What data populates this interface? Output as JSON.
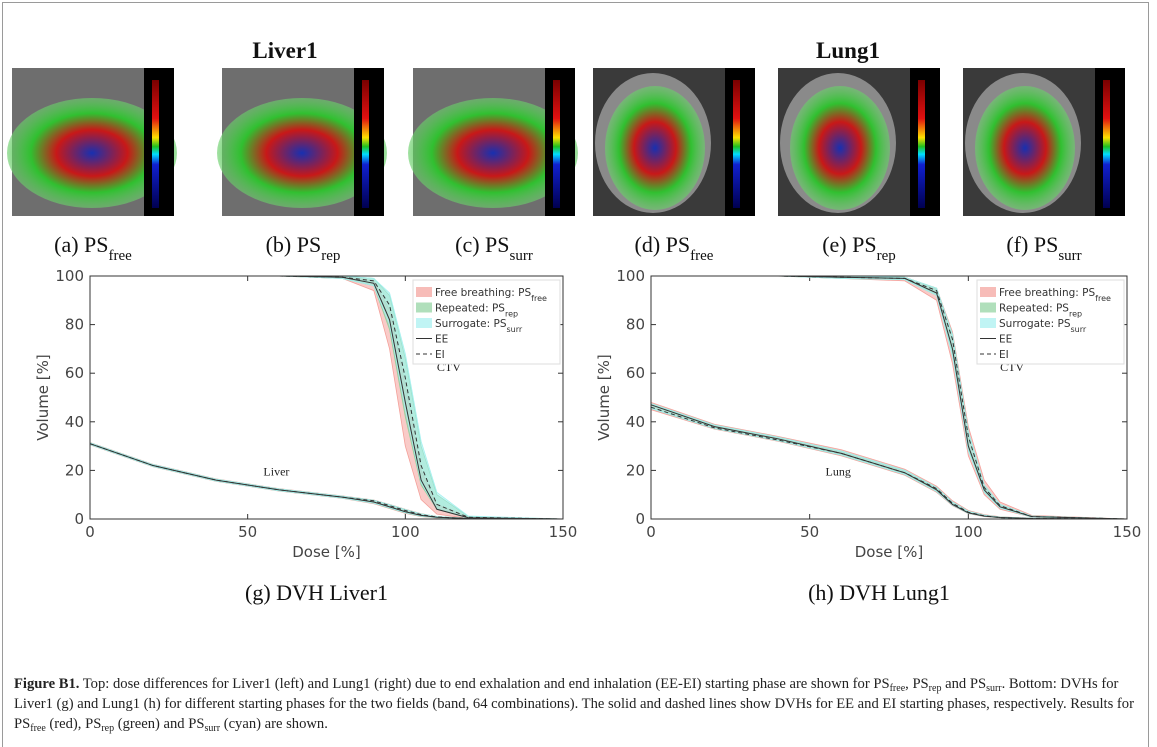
{
  "images": {
    "groups": [
      {
        "title": "Liver1",
        "panels": [
          {
            "label": "(a) PS",
            "sub": "free"
          },
          {
            "label": "(b) PS",
            "sub": "rep"
          },
          {
            "label": "(c) PS",
            "sub": "surr"
          }
        ]
      },
      {
        "title": "Lung1",
        "panels": [
          {
            "label": "(d) PS",
            "sub": "free"
          },
          {
            "label": "(e) PS",
            "sub": "rep"
          },
          {
            "label": "(f) PS",
            "sub": "surr"
          }
        ]
      }
    ]
  },
  "chart_data": [
    {
      "type": "line",
      "caption": "(g) DVH Liver1",
      "xlabel": "Dose [%]",
      "ylabel": "Volume [%]",
      "xlim": [
        0,
        150
      ],
      "ylim": [
        0,
        100
      ],
      "xticks": [
        0,
        50,
        100,
        150
      ],
      "yticks": [
        0,
        20,
        40,
        60,
        80,
        100
      ],
      "grid": false,
      "legend": "top-right",
      "annotations": [
        "CTV",
        "Liver"
      ],
      "x": [
        0,
        20,
        40,
        60,
        80,
        90,
        95,
        100,
        105,
        110,
        120,
        150
      ],
      "series": [
        {
          "name": "Free breathing: PS",
          "sub": "free",
          "color": "#f4a09a",
          "bands": [
            {
              "lower": [
                100,
                100,
                100,
                100,
                99,
                94,
                70,
                30,
                8,
                2,
                0.2,
                0
              ],
              "upper": [
                100,
                100,
                100,
                100,
                100,
                98,
                86,
                55,
                20,
                6,
                0.8,
                0
              ]
            },
            {
              "lower": [
                30.5,
                21.5,
                15.5,
                11.5,
                8.5,
                6.3,
                4.3,
                2.3,
                1,
                0.4,
                0.1,
                0
              ],
              "upper": [
                31.5,
                22.5,
                16.5,
                12.5,
                9.5,
                7.8,
                6,
                4,
                2.2,
                1,
                0.3,
                0
              ]
            }
          ]
        },
        {
          "name": "Repeated: PS",
          "sub": "rep",
          "color": "#8fd19e",
          "bands": [
            {
              "lower": [
                100,
                100,
                100,
                100,
                99,
                96,
                78,
                42,
                14,
                4,
                0.4,
                0
              ],
              "upper": [
                100,
                100,
                100,
                100,
                100,
                99,
                92,
                66,
                30,
                10,
                1,
                0
              ]
            },
            {
              "lower": [
                30.6,
                21.6,
                15.6,
                11.6,
                8.6,
                6.5,
                4.5,
                2.5,
                1.1,
                0.5,
                0.1,
                0
              ],
              "upper": [
                31.4,
                22.4,
                16.4,
                12.4,
                9.4,
                7.7,
                5.9,
                3.9,
                2.1,
                1,
                0.3,
                0
              ]
            }
          ]
        },
        {
          "name": "Surrogate: PS",
          "sub": "surr",
          "color": "#a5f0f0",
          "bands": [
            {
              "lower": [
                100,
                100,
                100,
                100,
                99,
                96,
                80,
                45,
                15,
                4,
                0.4,
                0
              ],
              "upper": [
                100,
                100,
                100,
                100,
                100,
                99,
                93,
                68,
                32,
                11,
                1.2,
                0
              ]
            },
            {
              "lower": [
                30.6,
                21.6,
                15.6,
                11.6,
                8.6,
                6.5,
                4.6,
                2.6,
                1.2,
                0.5,
                0.1,
                0
              ],
              "upper": [
                31.4,
                22.4,
                16.4,
                12.4,
                9.4,
                7.7,
                5.9,
                3.9,
                2.1,
                1,
                0.3,
                0
              ]
            }
          ]
        },
        {
          "name": "EE",
          "color": "#333333",
          "dash": "solid",
          "lines": [
            [
              100,
              100,
              100,
              100,
              99.5,
              97,
              82,
              48,
              16,
              4,
              0.5,
              0
            ],
            [
              31,
              22,
              16,
              12,
              9,
              7,
              5,
              3,
              1.5,
              0.7,
              0.2,
              0
            ]
          ]
        },
        {
          "name": "EI",
          "color": "#333333",
          "dash": "dashed",
          "lines": [
            [
              100,
              100,
              100,
              100,
              99.5,
              98,
              88,
              58,
              22,
              6,
              0.7,
              0
            ],
            [
              31,
              22,
              16,
              12,
              9,
              7.5,
              5.5,
              3.5,
              1.8,
              0.8,
              0.2,
              0
            ]
          ]
        }
      ]
    },
    {
      "type": "line",
      "caption": "(h) DVH Lung1",
      "xlabel": "Dose [%]",
      "ylabel": "Volume [%]",
      "xlim": [
        0,
        150
      ],
      "ylim": [
        0,
        100
      ],
      "xticks": [
        0,
        50,
        100,
        150
      ],
      "yticks": [
        0,
        20,
        40,
        60,
        80,
        100
      ],
      "grid": false,
      "legend": "top-right",
      "annotations": [
        "CTV",
        "Lung"
      ],
      "x": [
        0,
        20,
        40,
        60,
        80,
        90,
        95,
        100,
        105,
        110,
        120,
        150
      ],
      "series": [
        {
          "name": "Free breathing: PS",
          "sub": "free",
          "color": "#f4a09a",
          "bands": [
            {
              "lower": [
                100,
                100,
                100,
                99,
                98,
                90,
                64,
                26,
                10,
                4,
                0.8,
                0
              ],
              "upper": [
                100,
                100,
                100,
                100,
                99.5,
                95,
                77,
                38,
                16,
                7,
                1.5,
                0
              ]
            },
            {
              "lower": [
                45,
                37,
                32,
                26,
                18,
                11,
                5.5,
                2.2,
                1,
                0.5,
                0.1,
                0
              ],
              "upper": [
                48,
                39,
                34,
                28.5,
                20.5,
                13.5,
                7.5,
                3.5,
                1.8,
                0.9,
                0.3,
                0
              ]
            }
          ]
        },
        {
          "name": "Repeated: PS",
          "sub": "rep",
          "color": "#8fd19e",
          "bands": [
            {
              "lower": [
                100,
                100,
                100,
                99,
                98.5,
                92,
                68,
                29,
                11,
                4.5,
                0.8,
                0
              ],
              "upper": [
                100,
                100,
                100,
                100,
                99.5,
                95,
                76,
                36,
                14,
                6,
                1.2,
                0
              ]
            },
            {
              "lower": [
                45.5,
                37.2,
                32.2,
                26.3,
                18.3,
                11.3,
                5.7,
                2.3,
                1.1,
                0.5,
                0.1,
                0
              ],
              "upper": [
                47.5,
                38.7,
                33.7,
                28,
                20,
                13,
                7,
                3.2,
                1.6,
                0.8,
                0.3,
                0
              ]
            }
          ]
        },
        {
          "name": "Surrogate: PS",
          "sub": "surr",
          "color": "#a5f0f0",
          "bands": [
            {
              "lower": [
                100,
                100,
                100,
                99,
                98.5,
                92,
                67,
                28,
                11,
                4.5,
                0.8,
                0
              ],
              "upper": [
                100,
                100,
                100,
                100,
                99.5,
                95,
                76,
                36,
                14,
                6,
                1.2,
                0
              ]
            },
            {
              "lower": [
                45.5,
                37.2,
                32.2,
                26.3,
                18.3,
                11.3,
                5.7,
                2.3,
                1.1,
                0.5,
                0.1,
                0
              ],
              "upper": [
                47.5,
                38.7,
                33.7,
                28,
                20,
                13,
                7,
                3.2,
                1.6,
                0.8,
                0.3,
                0
              ]
            }
          ]
        },
        {
          "name": "EE",
          "color": "#333333",
          "dash": "solid",
          "lines": [
            [
              100,
              100,
              100,
              99.5,
              99,
              93,
              70,
              30,
              12,
              5,
              1,
              0
            ],
            [
              47,
              38,
              33,
              27,
              19,
              12,
              6,
              2.5,
              1.2,
              0.6,
              0.2,
              0
            ]
          ]
        },
        {
          "name": "EI",
          "color": "#333333",
          "dash": "dashed",
          "lines": [
            [
              100,
              100,
              100,
              99.5,
              99,
              94,
              74,
              34,
              13,
              5.5,
              1,
              0
            ],
            [
              46,
              37.5,
              32.5,
              27,
              19,
              12.5,
              6.5,
              2.8,
              1.3,
              0.6,
              0.2,
              0
            ]
          ]
        }
      ]
    }
  ],
  "caption": {
    "label": "Figure B1.",
    "parts": [
      {
        "text": " Top: dose differences for Liver1 (left) and Lung1 (right) due to end exhalation and end inhalation (EE-EI) starting phase are shown for PS"
      },
      {
        "sub": "free"
      },
      {
        "text": ", PS"
      },
      {
        "sub": "rep"
      },
      {
        "text": " and PS"
      },
      {
        "sub": "surr"
      },
      {
        "text": ". Bottom: DVHs for Liver1 (g) and Lung1 (h) for different starting phases for the two fields (band, 64 combinations). The solid and dashed lines show DVHs for EE and EI starting phases, respectively. Results for PS"
      },
      {
        "sub": "free"
      },
      {
        "text": " (red), PS"
      },
      {
        "sub": "rep"
      },
      {
        "text": " (green) and PS"
      },
      {
        "sub": "surr"
      },
      {
        "text": " (cyan) are shown."
      }
    ]
  }
}
